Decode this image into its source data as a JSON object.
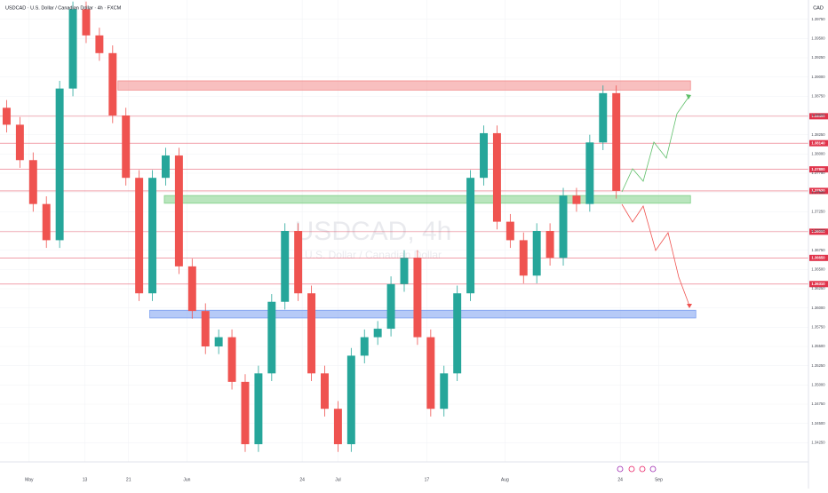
{
  "chart_data": {
    "type": "candlestick",
    "title": "USDCAD · U.S. Dollar / Canadian Dollar · 4h · FXCM",
    "currency": "CAD",
    "watermark": "USDCAD, 4h",
    "watermark_subtitle": "U.S. Dollar / Canadian Dollar",
    "up_color": "#26a69a",
    "down_color": "#ef5350",
    "open": [
      1.386,
      1.3838,
      1.3792,
      1.3735,
      1.3688,
      1.3885,
      1.3988,
      1.3954,
      1.3931,
      1.385,
      1.3769,
      1.3619,
      1.3769,
      1.3798,
      1.3654,
      1.3596,
      1.355,
      1.3562,
      1.3504,
      1.3423,
      1.3515,
      1.3608,
      1.37,
      1.3619,
      1.3515,
      1.3469,
      1.3423,
      1.3538,
      1.3562,
      1.3573,
      1.3631,
      1.3665,
      1.3562,
      1.3469,
      1.3515,
      1.3619,
      1.3769,
      1.3827,
      1.3712,
      1.3688,
      1.3642,
      1.37,
      1.3665,
      1.3746,
      1.3735,
      1.3815,
      1.3879
    ],
    "high": [
      1.387,
      1.3848,
      1.3802,
      1.3745,
      1.3895,
      1.3998,
      1.3998,
      1.3964,
      1.3941,
      1.386,
      1.3779,
      1.3779,
      1.3808,
      1.3808,
      1.3664,
      1.3606,
      1.3572,
      1.3572,
      1.3514,
      1.3525,
      1.3618,
      1.371,
      1.371,
      1.3629,
      1.3525,
      1.3479,
      1.3548,
      1.3572,
      1.3583,
      1.3641,
      1.3675,
      1.3675,
      1.3572,
      1.3525,
      1.3629,
      1.3779,
      1.3837,
      1.3837,
      1.3722,
      1.3698,
      1.371,
      1.371,
      1.3756,
      1.3756,
      1.3825,
      1.3889,
      1.3889
    ],
    "low": [
      1.3828,
      1.3782,
      1.3725,
      1.3678,
      1.3678,
      1.3875,
      1.3944,
      1.3921,
      1.384,
      1.3759,
      1.3609,
      1.3609,
      1.3759,
      1.3644,
      1.3586,
      1.354,
      1.354,
      1.3494,
      1.3413,
      1.3413,
      1.3505,
      1.3598,
      1.3609,
      1.3505,
      1.3459,
      1.3413,
      1.3413,
      1.3528,
      1.3552,
      1.3563,
      1.3621,
      1.3552,
      1.3459,
      1.3459,
      1.3505,
      1.3609,
      1.3759,
      1.3702,
      1.3678,
      1.3632,
      1.3632,
      1.3655,
      1.3655,
      1.3725,
      1.3725,
      1.3805,
      1.3742
    ],
    "close": [
      1.3838,
      1.3792,
      1.3735,
      1.3688,
      1.3885,
      1.3988,
      1.3954,
      1.3931,
      1.385,
      1.3769,
      1.3619,
      1.3769,
      1.3798,
      1.3654,
      1.3596,
      1.355,
      1.3562,
      1.3504,
      1.3423,
      1.3515,
      1.3608,
      1.37,
      1.3619,
      1.3515,
      1.3469,
      1.3423,
      1.3538,
      1.3562,
      1.3573,
      1.3631,
      1.3665,
      1.3562,
      1.3469,
      1.3515,
      1.3619,
      1.3769,
      1.3827,
      1.3712,
      1.3688,
      1.3642,
      1.37,
      1.3665,
      1.3746,
      1.3735,
      1.3815,
      1.3879,
      1.3752
    ],
    "xlim": [
      0,
      61
    ],
    "xticks": [
      {
        "value": 2.2,
        "label": "May"
      },
      {
        "value": 6.4,
        "label": "13"
      },
      {
        "value": 9.7,
        "label": "21"
      },
      {
        "value": 14.1,
        "label": "Jun"
      },
      {
        "value": 22.8,
        "label": "24"
      },
      {
        "value": 25.5,
        "label": "Jul"
      },
      {
        "value": 32.2,
        "label": "17"
      },
      {
        "value": 38.1,
        "label": "Aug"
      },
      {
        "value": 46.8,
        "label": "24"
      },
      {
        "value": 49.7,
        "label": "Sep"
      }
    ],
    "ylim": [
      1.34,
      1.4
    ],
    "yticks": [
      {
        "value": 1.3425,
        "label": "1.34250"
      },
      {
        "value": 1.345,
        "label": "1.34500"
      },
      {
        "value": 1.3475,
        "label": "1.34750"
      },
      {
        "value": 1.35,
        "label": "1.35000"
      },
      {
        "value": 1.3525,
        "label": "1.35250"
      },
      {
        "value": 1.355,
        "label": "1.35500"
      },
      {
        "value": 1.3575,
        "label": "1.35750"
      },
      {
        "value": 1.36,
        "label": "1.36000"
      },
      {
        "value": 1.3625,
        "label": "1.36250"
      },
      {
        "value": 1.365,
        "label": "1.36500"
      },
      {
        "value": 1.3675,
        "label": "1.36750"
      },
      {
        "value": 1.37,
        "label": "1.37000"
      },
      {
        "value": 1.3725,
        "label": "1.37250"
      },
      {
        "value": 1.375,
        "label": "1.37500"
      },
      {
        "value": 1.3775,
        "label": "1.37750"
      },
      {
        "value": 1.38,
        "label": "1.38000"
      },
      {
        "value": 1.3825,
        "label": "1.38250"
      },
      {
        "value": 1.385,
        "label": "1.38500"
      },
      {
        "value": 1.3875,
        "label": "1.38750"
      },
      {
        "value": 1.39,
        "label": "1.39000"
      },
      {
        "value": 1.3925,
        "label": "1.39250"
      },
      {
        "value": 1.395,
        "label": "1.39500"
      },
      {
        "value": 1.3975,
        "label": "1.39750"
      }
    ],
    "zones": [
      {
        "ymin": 1.3883,
        "ymax": 1.3895,
        "x": [
          8.9,
          52.1
        ],
        "color": "#f28b8b"
      },
      {
        "ymin": 1.3736,
        "ymax": 1.3746,
        "x": [
          12.4,
          52.1
        ],
        "color": "#7fcf86"
      },
      {
        "ymin": 1.3587,
        "ymax": 1.3597,
        "x": [
          11.3,
          52.5
        ],
        "color": "#7a9ef0"
      }
    ],
    "levels": [
      {
        "value": 1.3849,
        "label": "1.38490"
      },
      {
        "value": 1.3814,
        "label": "1.38140"
      },
      {
        "value": 1.378,
        "label": "1.37800"
      },
      {
        "value": 1.3752,
        "label": "1.37520"
      },
      {
        "value": 1.3699,
        "label": "1.36990"
      },
      {
        "value": 1.3665,
        "label": "1.36650"
      },
      {
        "value": 1.3631,
        "label": "1.36310"
      }
    ],
    "level_color": "#e0334a"
  }
}
